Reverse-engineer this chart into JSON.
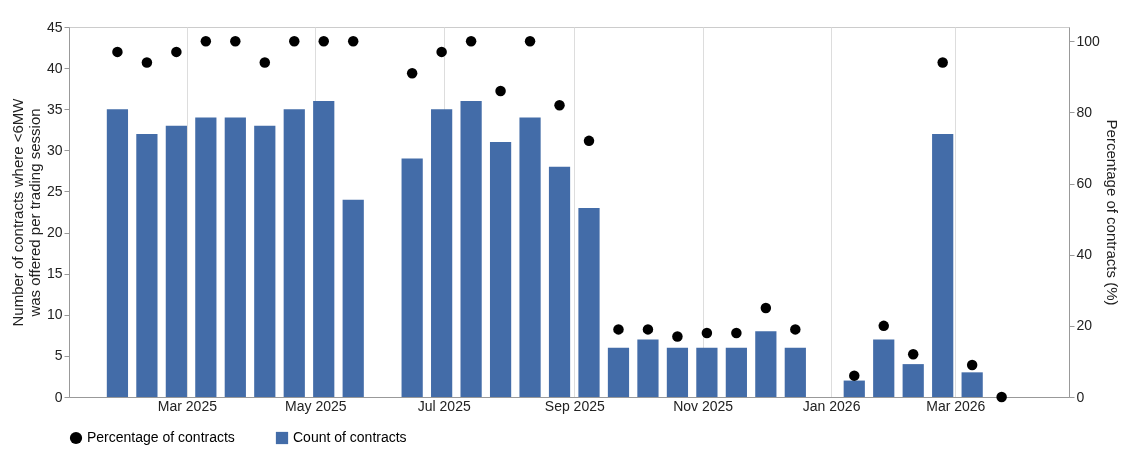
{
  "chart_data": {
    "type": "bar",
    "ylabel": "Number of contracts where <6MW\nwas offered per trading session",
    "y2label": "Percentage of contracts (%)",
    "x": [
      "2025-01-27",
      "2025-02-10",
      "2025-02-24",
      "2025-03-10",
      "2025-03-24",
      "2025-04-07",
      "2025-04-21",
      "2025-05-05",
      "2025-05-19",
      "2025-06-02",
      "2025-06-16",
      "2025-06-30",
      "2025-07-14",
      "2025-07-28",
      "2025-08-11",
      "2025-08-25",
      "2025-09-08",
      "2025-09-22",
      "2025-10-06",
      "2025-10-20",
      "2025-11-03",
      "2025-11-17",
      "2025-12-01",
      "2025-12-15",
      "2025-12-29",
      "2026-01-12",
      "2026-01-26",
      "2026-02-09",
      "2026-02-23",
      "2026-03-09",
      "2026-03-23"
    ],
    "series": [
      {
        "name": "Percentage of contracts",
        "type": "scatter",
        "axis": "y2",
        "color": "#000000",
        "marker": "circle",
        "values": [
          97,
          94,
          97,
          100,
          100,
          94,
          100,
          100,
          100,
          null,
          91,
          97,
          100,
          86,
          100,
          82,
          72,
          19,
          19,
          17,
          18,
          18,
          25,
          19,
          null,
          6,
          20,
          12,
          94,
          9,
          0
        ]
      },
      {
        "name": "Count of contracts",
        "color": "#436ca8",
        "values": [
          35,
          32,
          33,
          34,
          34,
          33,
          35,
          36,
          24,
          null,
          29,
          35,
          36,
          31,
          34,
          28,
          23,
          6,
          7,
          6,
          6,
          6,
          8,
          6,
          null,
          2,
          7,
          4,
          32,
          3,
          0
        ]
      }
    ],
    "xlim": [
      "2025-01-04",
      "2026-04-24"
    ],
    "xticks": [
      {
        "value": "2025-03-01",
        "label": "Mar 2025"
      },
      {
        "value": "2025-05-01",
        "label": "May 2025"
      },
      {
        "value": "2025-07-01",
        "label": "Jul 2025"
      },
      {
        "value": "2025-09-01",
        "label": "Sep 2025"
      },
      {
        "value": "2025-11-01",
        "label": "Nov 2025"
      },
      {
        "value": "2026-01-01",
        "label": "Jan 2026"
      },
      {
        "value": "2026-03-01",
        "label": "Mar 2026"
      }
    ],
    "ylim": [
      0,
      45
    ],
    "yticks": [
      0,
      5,
      10,
      15,
      20,
      25,
      30,
      35,
      40,
      45
    ],
    "y2lim": [
      0,
      104
    ],
    "y2ticks": [
      0,
      20,
      40,
      60,
      80,
      100
    ],
    "grid": "x",
    "legend": "bottom"
  }
}
